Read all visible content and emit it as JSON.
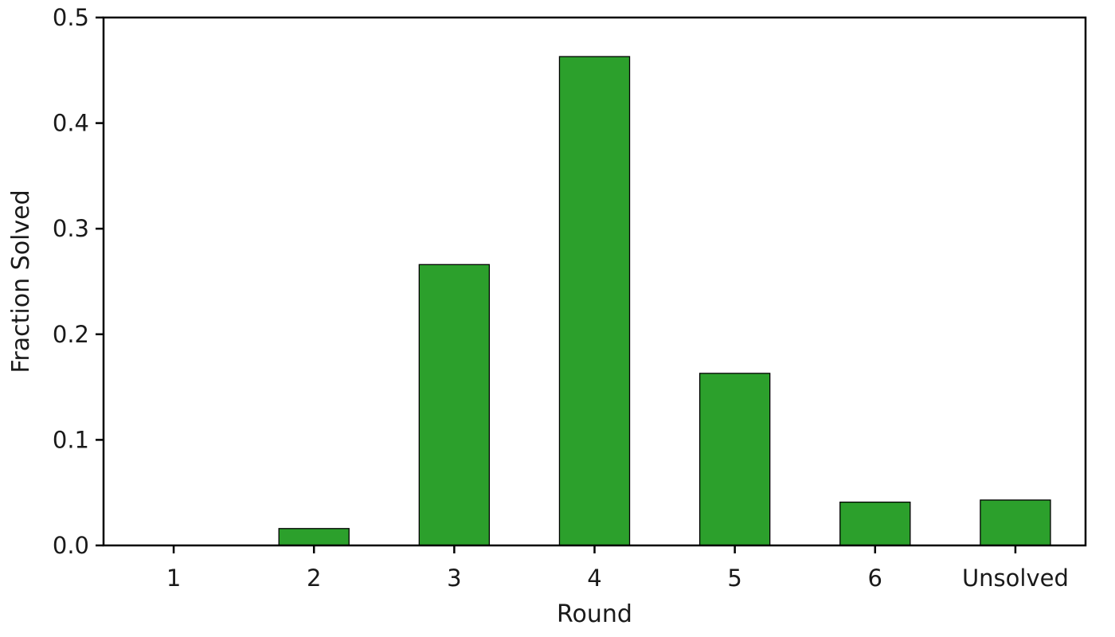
{
  "chart_data": {
    "type": "bar",
    "title": "",
    "xlabel": "Round",
    "ylabel": "Fraction Solved",
    "categories": [
      "1",
      "2",
      "3",
      "4",
      "5",
      "6",
      "Unsolved"
    ],
    "values": [
      0.0,
      0.016,
      0.266,
      0.463,
      0.163,
      0.041,
      0.043
    ],
    "ylim": [
      0,
      0.5
    ],
    "yticks": [
      0.0,
      0.1,
      0.2,
      0.3,
      0.4,
      0.5
    ],
    "ytick_labels": [
      "0.0",
      "0.1",
      "0.2",
      "0.3",
      "0.4",
      "0.5"
    ],
    "grid": false,
    "legend": "none",
    "colors": {
      "bar_fill": "#2ca02c",
      "bar_edge": "#000000",
      "axis": "#000000",
      "text": "#1a1a1a"
    }
  }
}
